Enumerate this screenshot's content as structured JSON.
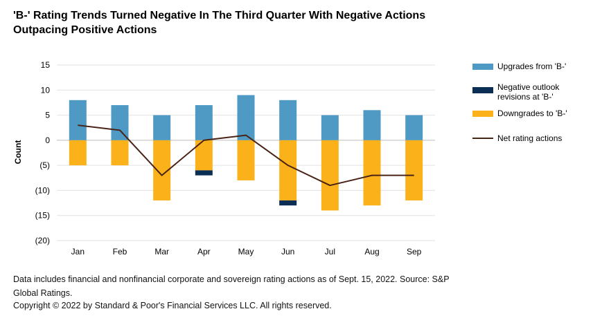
{
  "title": "'B-' Rating Trends Turned Negative In The Third Quarter With Negative Actions Outpacing Positive Actions",
  "footnote": "Data includes financial and nonfinancial corporate and sovereign rating actions as of Sept. 15, 2022. Source: S&P Global Ratings.",
  "copyright": "Copyright © 2022 by Standard & Poor's Financial Services LLC. All rights reserved.",
  "colors": {
    "upgrades": "#4e9ac4",
    "negative_outlook": "#0b2e55",
    "downgrades": "#fbb11a",
    "net": "#4a2317",
    "grid": "#e2e2e2"
  },
  "chart_data": {
    "type": "bar",
    "categories": [
      "Jan",
      "Feb",
      "Mar",
      "Apr",
      "May",
      "Jun",
      "Jul",
      "Aug",
      "Sep"
    ],
    "series": [
      {
        "name": "Upgrades from 'B-'",
        "type": "bar",
        "values": [
          8,
          7,
          5,
          7,
          9,
          8,
          5,
          6,
          5
        ]
      },
      {
        "name": "Negative outlook revisions at 'B-'",
        "type": "bar",
        "values": [
          0,
          0,
          0,
          -1,
          0,
          -1,
          0,
          0,
          0
        ]
      },
      {
        "name": "Downgrades to 'B-'",
        "type": "bar",
        "values": [
          -5,
          -5,
          -12,
          -6,
          -8,
          -12,
          -14,
          -13,
          -12
        ]
      },
      {
        "name": "Net rating actions",
        "type": "line",
        "values": [
          3,
          2,
          -7,
          0,
          1,
          -5,
          -9,
          -7,
          -7
        ]
      }
    ],
    "ylabel": "Count",
    "xlabel": "",
    "ylim": [
      -20,
      15
    ],
    "yticks": [
      15,
      10,
      5,
      0,
      -5,
      -10,
      -15,
      -20
    ],
    "ytick_labels": [
      "15",
      "10",
      "5",
      "0",
      "(5)",
      "(10)",
      "(15)",
      "(20)"
    ],
    "stacked": true,
    "grid": "horizontal",
    "legend_position": "right"
  }
}
